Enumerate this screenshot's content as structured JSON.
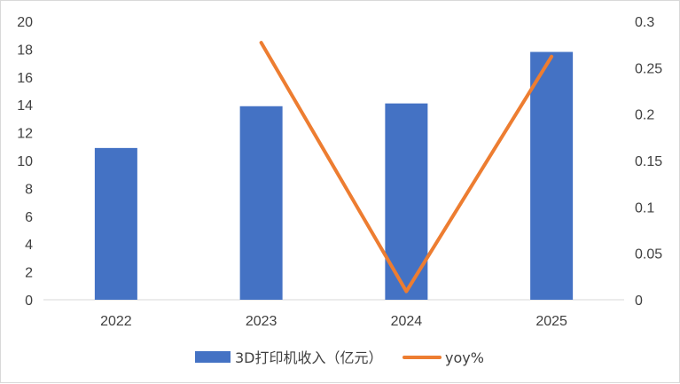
{
  "chart_data": {
    "type": "bar",
    "categories": [
      "2022",
      "2023",
      "2024",
      "2025"
    ],
    "series": [
      {
        "name": "3D打印机收入（亿元）",
        "type": "bar",
        "axis": "left",
        "color": "#4472C4",
        "values": [
          10.9,
          13.9,
          14.1,
          17.8
        ]
      },
      {
        "name": "yoy%",
        "type": "line",
        "axis": "right",
        "color": "#ED7D31",
        "values": [
          null,
          0.277,
          0.009,
          0.262
        ]
      }
    ],
    "y_left": {
      "min": 0,
      "max": 20,
      "step": 2,
      "ticks": [
        "0",
        "2",
        "4",
        "6",
        "8",
        "10",
        "12",
        "14",
        "16",
        "18",
        "20"
      ]
    },
    "y_right": {
      "min": 0,
      "max": 0.3,
      "step": 0.05,
      "ticks": [
        "0",
        "0.05",
        "0.1",
        "0.15",
        "0.2",
        "0.25",
        "0.3"
      ]
    },
    "grid": false,
    "legend": "bottom"
  }
}
